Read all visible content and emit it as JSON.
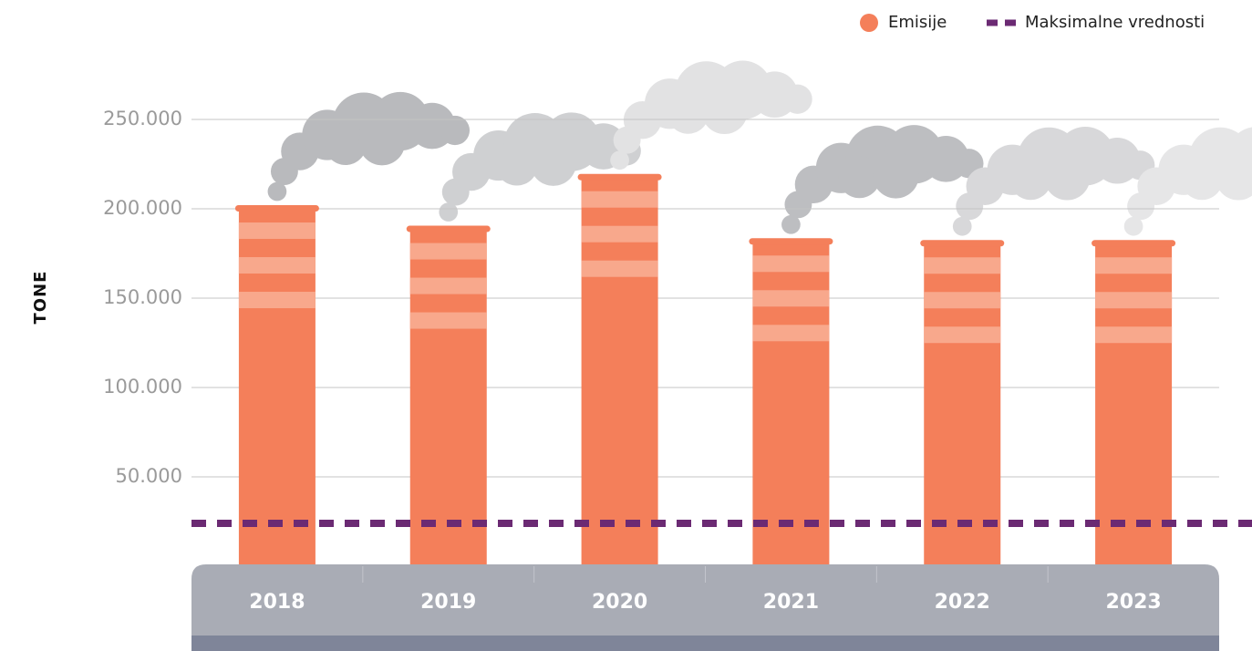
{
  "chart_data": {
    "type": "bar",
    "y_label": "TONE",
    "categories": [
      "2018",
      "2019",
      "2020",
      "2021",
      "2022",
      "2023"
    ],
    "series": [
      {
        "name": "Emisije",
        "color": "#f47f5a",
        "values": [
          200500,
          189000,
          218000,
          182000,
          181000,
          181000
        ]
      }
    ],
    "reference_line": {
      "name": "Maksimalne vrednosti",
      "value": 24000,
      "color": "#6b2a73"
    },
    "ylim": [
      0,
      250000
    ],
    "yticks": [
      {
        "value": 50000,
        "label": "50.000"
      },
      {
        "value": 100000,
        "label": "100.000"
      },
      {
        "value": 150000,
        "label": "150.000"
      },
      {
        "value": 200000,
        "label": "200.000"
      },
      {
        "value": 250000,
        "label": "250.000"
      }
    ],
    "grid": true,
    "legend": "top-right"
  }
}
